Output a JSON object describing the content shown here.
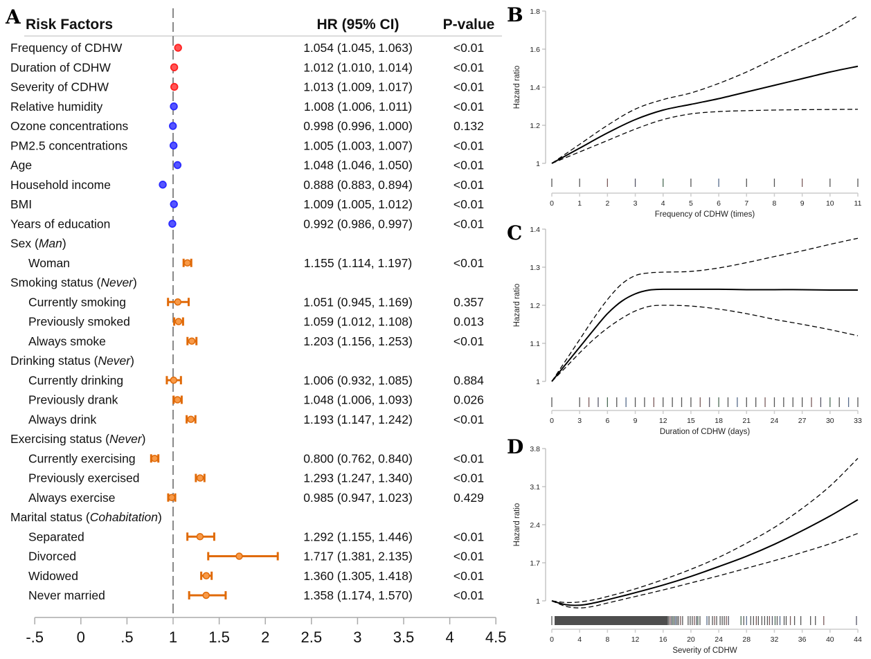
{
  "figure": {
    "panel_labels": [
      "A",
      "B",
      "C",
      "D"
    ]
  },
  "chart_data": [
    {
      "panel": "A",
      "type": "forest",
      "headers": {
        "factor": "Risk Factors",
        "hr": "HR (95% CI)",
        "p": "P-value"
      },
      "reference_line": 1,
      "xlim": [
        -0.5,
        4.5
      ],
      "xticks": [
        -0.5,
        0,
        0.5,
        1,
        1.5,
        2,
        2.5,
        3,
        3.5,
        4,
        4.5
      ],
      "xtick_labels": [
        "-.5",
        "0",
        ".5",
        "1",
        "1.5",
        "2",
        "2.5",
        "3",
        "3.5",
        "4",
        "4.5"
      ],
      "colors": {
        "heatwave": "#ff2020",
        "environment_demographic": "#2a2aff",
        "categorical": "#f07818",
        "reference_line": "#888888",
        "axis": "#aaaaaa"
      },
      "rows": [
        {
          "label": "Frequency of CDHW",
          "indent": 0,
          "group": "heatwave",
          "hr": 1.054,
          "lo": 1.045,
          "hi": 1.063,
          "hr_text": "1.054 (1.045, 1.063)",
          "p": "<0.01"
        },
        {
          "label": "Duration of CDHW",
          "indent": 0,
          "group": "heatwave",
          "hr": 1.012,
          "lo": 1.01,
          "hi": 1.014,
          "hr_text": "1.012 (1.010, 1.014)",
          "p": "<0.01"
        },
        {
          "label": "Severity of CDHW",
          "indent": 0,
          "group": "heatwave",
          "hr": 1.013,
          "lo": 1.009,
          "hi": 1.017,
          "hr_text": "1.013 (1.009, 1.017)",
          "p": "<0.01"
        },
        {
          "label": "Relative humidity",
          "indent": 0,
          "group": "environment_demographic",
          "hr": 1.008,
          "lo": 1.006,
          "hi": 1.011,
          "hr_text": "1.008 (1.006, 1.011)",
          "p": "<0.01"
        },
        {
          "label": "Ozone concentrations",
          "indent": 0,
          "group": "environment_demographic",
          "hr": 0.998,
          "lo": 0.996,
          "hi": 1.0,
          "hr_text": "0.998 (0.996, 1.000)",
          "p": "0.132"
        },
        {
          "label": "PM2.5 concentrations",
          "indent": 0,
          "group": "environment_demographic",
          "hr": 1.005,
          "lo": 1.003,
          "hi": 1.007,
          "hr_text": "1.005 (1.003, 1.007)",
          "p": "<0.01"
        },
        {
          "label": "Age",
          "indent": 0,
          "group": "environment_demographic",
          "hr": 1.048,
          "lo": 1.046,
          "hi": 1.05,
          "hr_text": "1.048 (1.046, 1.050)",
          "p": "<0.01"
        },
        {
          "label": "Household income",
          "indent": 0,
          "group": "environment_demographic",
          "hr": 0.888,
          "lo": 0.883,
          "hi": 0.894,
          "hr_text": "0.888 (0.883, 0.894)",
          "p": "<0.01"
        },
        {
          "label": "BMI",
          "indent": 0,
          "group": "environment_demographic",
          "hr": 1.009,
          "lo": 1.005,
          "hi": 1.012,
          "hr_text": "1.009 (1.005, 1.012)",
          "p": "<0.01"
        },
        {
          "label": "Years of education",
          "indent": 0,
          "group": "environment_demographic",
          "hr": 0.992,
          "lo": 0.986,
          "hi": 0.997,
          "hr_text": "0.992 (0.986, 0.997)",
          "p": "<0.01"
        },
        {
          "label": "Sex (",
          "italic": "Man",
          "label_end": ")",
          "indent": 0,
          "header": true
        },
        {
          "label": "Woman",
          "indent": 1,
          "group": "categorical",
          "hr": 1.155,
          "lo": 1.114,
          "hi": 1.197,
          "hr_text": "1.155 (1.114, 1.197)",
          "p": "<0.01"
        },
        {
          "label": "Smoking status (",
          "italic": "Never",
          "label_end": ")",
          "indent": 0,
          "header": true
        },
        {
          "label": "Currently smoking",
          "indent": 1,
          "group": "categorical",
          "hr": 1.051,
          "lo": 0.945,
          "hi": 1.169,
          "hr_text": "1.051 (0.945, 1.169)",
          "p": "0.357"
        },
        {
          "label": "Previously smoked",
          "indent": 1,
          "group": "categorical",
          "hr": 1.059,
          "lo": 1.012,
          "hi": 1.108,
          "hr_text": "1.059 (1.012, 1.108)",
          "p": "0.013"
        },
        {
          "label": "Always smoke",
          "indent": 1,
          "group": "categorical",
          "hr": 1.203,
          "lo": 1.156,
          "hi": 1.253,
          "hr_text": "1.203 (1.156, 1.253)",
          "p": "<0.01"
        },
        {
          "label": "Drinking status (",
          "italic": "Never",
          "label_end": ")",
          "indent": 0,
          "header": true
        },
        {
          "label": "Currently drinking",
          "indent": 1,
          "group": "categorical",
          "hr": 1.006,
          "lo": 0.932,
          "hi": 1.085,
          "hr_text": "1.006 (0.932, 1.085)",
          "p": "0.884"
        },
        {
          "label": "Previously drank",
          "indent": 1,
          "group": "categorical",
          "hr": 1.048,
          "lo": 1.006,
          "hi": 1.093,
          "hr_text": "1.048 (1.006, 1.093)",
          "p": "0.026"
        },
        {
          "label": "Always drink",
          "indent": 1,
          "group": "categorical",
          "hr": 1.193,
          "lo": 1.147,
          "hi": 1.242,
          "hr_text": "1.193 (1.147, 1.242)",
          "p": "<0.01"
        },
        {
          "label": "Exercising status (",
          "italic": "Never",
          "label_end": ")",
          "indent": 0,
          "header": true
        },
        {
          "label": "Currently exercising",
          "indent": 1,
          "group": "categorical",
          "hr": 0.8,
          "lo": 0.762,
          "hi": 0.84,
          "hr_text": "0.800 (0.762, 0.840)",
          "p": "<0.01"
        },
        {
          "label": "Previously exercised",
          "indent": 1,
          "group": "categorical",
          "hr": 1.293,
          "lo": 1.247,
          "hi": 1.34,
          "hr_text": "1.293 (1.247, 1.340)",
          "p": "<0.01"
        },
        {
          "label": "Always exercise",
          "indent": 1,
          "group": "categorical",
          "hr": 0.985,
          "lo": 0.947,
          "hi": 1.023,
          "hr_text": "0.985 (0.947, 1.023)",
          "p": "0.429"
        },
        {
          "label": "Marital status (",
          "italic": "Cohabitation",
          "label_end": ")",
          "indent": 0,
          "header": true
        },
        {
          "label": "Separated",
          "indent": 1,
          "group": "categorical",
          "hr": 1.292,
          "lo": 1.155,
          "hi": 1.446,
          "hr_text": "1.292 (1.155, 1.446)",
          "p": "<0.01"
        },
        {
          "label": "Divorced",
          "indent": 1,
          "group": "categorical",
          "hr": 1.717,
          "lo": 1.381,
          "hi": 2.135,
          "hr_text": "1.717 (1.381, 2.135)",
          "p": "<0.01"
        },
        {
          "label": "Widowed",
          "indent": 1,
          "group": "categorical",
          "hr": 1.36,
          "lo": 1.305,
          "hi": 1.418,
          "hr_text": "1.360 (1.305, 1.418)",
          "p": "<0.01"
        },
        {
          "label": "Never married",
          "indent": 1,
          "group": "categorical",
          "hr": 1.358,
          "lo": 1.174,
          "hi": 1.57,
          "hr_text": "1.358 (1.174, 1.570)",
          "p": "<0.01"
        }
      ]
    },
    {
      "panel": "B",
      "type": "line",
      "xlabel": "Frequency of CDHW (times)",
      "ylabel": "Hazard ratio",
      "xlim": [
        0,
        11
      ],
      "ylim": [
        1,
        1.8
      ],
      "xticks": [
        0,
        1,
        2,
        3,
        4,
        5,
        6,
        7,
        8,
        9,
        10,
        11
      ],
      "yticks": [
        1,
        1.2,
        1.4,
        1.6,
        1.8
      ],
      "ytick_labels": [
        "1",
        "1.2",
        "1.4",
        "1.6",
        "1.8"
      ],
      "x": [
        0,
        1,
        2,
        3,
        4,
        5,
        6,
        7,
        8,
        9,
        10,
        11
      ],
      "series": [
        {
          "name": "HR",
          "style": "solid",
          "values": [
            1.0,
            1.08,
            1.16,
            1.23,
            1.28,
            1.31,
            1.34,
            1.375,
            1.41,
            1.445,
            1.48,
            1.51
          ]
        },
        {
          "name": "Upper 95% CI",
          "style": "dashed",
          "values": [
            1.0,
            1.1,
            1.2,
            1.285,
            1.335,
            1.37,
            1.42,
            1.48,
            1.55,
            1.62,
            1.69,
            1.775
          ]
        },
        {
          "name": "Lower 95% CI",
          "style": "dashed",
          "values": [
            1.0,
            1.06,
            1.12,
            1.18,
            1.23,
            1.26,
            1.272,
            1.277,
            1.28,
            1.282,
            1.283,
            1.284
          ]
        }
      ],
      "rug": [
        0,
        1,
        2,
        3,
        4,
        5,
        6,
        7,
        8,
        9,
        10,
        11
      ]
    },
    {
      "panel": "C",
      "type": "line",
      "xlabel": "Duration of CDHW (days)",
      "ylabel": "Hazard ratio",
      "xlim": [
        0,
        33
      ],
      "ylim": [
        1,
        1.4
      ],
      "xticks": [
        0,
        3,
        6,
        9,
        12,
        15,
        18,
        21,
        24,
        27,
        30,
        33
      ],
      "yticks": [
        1,
        1.1,
        1.2,
        1.3,
        1.4
      ],
      "ytick_labels": [
        "1",
        "1.1",
        "1.2",
        "1.3",
        "1.4"
      ],
      "x": [
        0,
        1.5,
        3,
        4.5,
        6,
        7.5,
        9,
        10.5,
        12,
        15,
        18,
        21,
        24,
        27,
        30,
        33
      ],
      "series": [
        {
          "name": "HR",
          "style": "solid",
          "values": [
            1.0,
            1.045,
            1.09,
            1.135,
            1.178,
            1.21,
            1.23,
            1.24,
            1.242,
            1.242,
            1.242,
            1.241,
            1.241,
            1.241,
            1.24,
            1.24
          ]
        },
        {
          "name": "Upper 95% CI",
          "style": "dashed",
          "values": [
            1.0,
            1.055,
            1.11,
            1.165,
            1.215,
            1.255,
            1.278,
            1.285,
            1.287,
            1.289,
            1.298,
            1.312,
            1.328,
            1.343,
            1.36,
            1.376
          ]
        },
        {
          "name": "Lower 95% CI",
          "style": "dashed",
          "values": [
            1.0,
            1.037,
            1.075,
            1.11,
            1.14,
            1.165,
            1.185,
            1.197,
            1.2,
            1.198,
            1.19,
            1.178,
            1.163,
            1.15,
            1.136,
            1.12
          ]
        }
      ],
      "rug": [
        0,
        3,
        4,
        5,
        6,
        7,
        8,
        9,
        10,
        11,
        12,
        13,
        14,
        15,
        16,
        17,
        18,
        19,
        20,
        21,
        22,
        23,
        24,
        25,
        26,
        27,
        28,
        29,
        30,
        31,
        32,
        33
      ]
    },
    {
      "panel": "D",
      "type": "line",
      "xlabel": "Severity of CDHW",
      "ylabel": "Hazard ratio",
      "xlim": [
        0,
        44
      ],
      "ylim": [
        1,
        3.8
      ],
      "xticks": [
        0,
        4,
        8,
        12,
        16,
        20,
        24,
        28,
        32,
        36,
        40,
        44
      ],
      "yticks": [
        1,
        1.7,
        2.4,
        3.1,
        3.8
      ],
      "ytick_labels": [
        "1",
        "1.7",
        "2.4",
        "3.1",
        "3.8"
      ],
      "x": [
        0,
        2,
        4,
        6,
        8,
        12,
        16,
        20,
        24,
        28,
        32,
        36,
        40,
        44
      ],
      "series": [
        {
          "name": "HR",
          "style": "solid",
          "values": [
            1.0,
            0.93,
            0.92,
            0.96,
            1.02,
            1.15,
            1.29,
            1.45,
            1.63,
            1.82,
            2.04,
            2.29,
            2.56,
            2.86
          ]
        },
        {
          "name": "Upper 95% CI",
          "style": "dashed",
          "values": [
            1.0,
            0.97,
            0.98,
            1.02,
            1.08,
            1.22,
            1.39,
            1.58,
            1.8,
            2.06,
            2.35,
            2.7,
            3.11,
            3.62
          ]
        },
        {
          "name": "Lower 95% CI",
          "style": "dashed",
          "values": [
            1.0,
            0.9,
            0.87,
            0.9,
            0.96,
            1.08,
            1.2,
            1.33,
            1.46,
            1.6,
            1.74,
            1.89,
            2.05,
            2.24
          ]
        }
      ],
      "rug_dense_range": [
        0.4,
        16.7
      ],
      "rug": [
        0,
        16.8,
        17.0,
        17.2,
        17.4,
        17.6,
        17.8,
        18.0,
        18.2,
        18.5,
        18.8,
        19.6,
        19.9,
        20.2,
        20.5,
        20.8,
        21.0,
        21.3,
        22.3,
        22.6,
        23.1,
        23.4,
        23.7,
        24.2,
        24.5,
        24.8,
        25.1,
        25.4,
        27.2,
        27.6,
        28.0,
        28.6,
        29.0,
        29.4,
        29.7,
        30.2,
        30.6,
        31.0,
        31.3,
        31.7,
        32.1,
        32.4,
        32.8,
        33.4,
        33.7,
        34.3,
        34.9,
        35.8,
        37.2,
        37.9,
        39.1,
        43.8
      ]
    }
  ]
}
